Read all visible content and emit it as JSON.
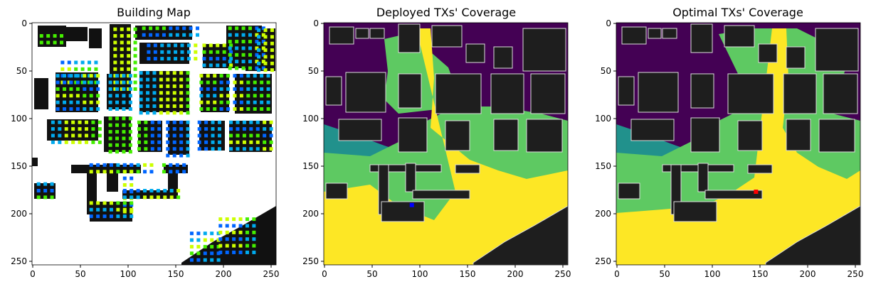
{
  "chart_data": [
    {
      "type": "heatmap",
      "title": "Building Map",
      "xlim": [
        0,
        255
      ],
      "ylim": [
        255,
        0
      ],
      "xticks": [
        "0",
        "50",
        "100",
        "150",
        "200",
        "250"
      ],
      "yticks": [
        "0",
        "50",
        "100",
        "150",
        "200",
        "250"
      ],
      "grid": false,
      "colors": {
        "background": "#ffffff",
        "building": "#111111",
        "tx_green": "#44ee00",
        "tx_yellow": "#ccff00",
        "tx_cyan": "#00aaee",
        "tx_blue": "#0066ff"
      },
      "buildings": [
        {
          "x0": 5,
          "x1": 17,
          "y0": 2,
          "y1": 28
        },
        {
          "x0": 10,
          "x1": 45,
          "y0": 0,
          "y1": 22
        },
        {
          "x0": 45,
          "x1": 58,
          "y0": 3,
          "y1": 15
        },
        {
          "x0": 58,
          "x1": 72,
          "y0": 4,
          "y1": 24
        },
        {
          "x0": 80,
          "x1": 90,
          "y0": 6,
          "y1": 20
        },
        {
          "x0": 80,
          "x1": 90,
          "y0": 6,
          "y1": 20
        },
        {
          "x0": 80,
          "x1": 90,
          "y0": 6,
          "y1": 20
        },
        {
          "x0": 80,
          "x1": 90,
          "y0": 6,
          "y1": 20
        },
        {
          "x0": 80,
          "x1": 90,
          "y0": 6,
          "y1": 20
        },
        {
          "x0": 80,
          "x1": 90,
          "y0": 6,
          "y1": 20
        },
        {
          "x0": 80,
          "x1": 90,
          "y0": 6,
          "y1": 20
        },
        {
          "x0": 80,
          "x1": 90,
          "y0": 6,
          "y1": 20
        },
        {
          "x0": 80,
          "x1": 90,
          "y0": 6,
          "y1": 20
        },
        {
          "x0": 80,
          "x1": 90,
          "y0": 6,
          "y1": 20
        }
      ]
    },
    {
      "type": "heatmap",
      "title": "Deployed TXs' Coverage",
      "xlim": [
        0,
        255
      ],
      "ylim": [
        255,
        0
      ],
      "xticks": [
        "0",
        "50",
        "100",
        "150",
        "200",
        "250"
      ],
      "yticks": [
        "0",
        "50",
        "100",
        "150",
        "200",
        "250"
      ],
      "grid": false,
      "colormap": "viridis",
      "tx_marker": {
        "x": 92,
        "y": 192,
        "color": "#0000ff"
      }
    },
    {
      "type": "heatmap",
      "title": "Optimal TXs' Coverage",
      "xlim": [
        0,
        255
      ],
      "ylim": [
        255,
        0
      ],
      "xticks": [
        "0",
        "50",
        "100",
        "150",
        "200",
        "250"
      ],
      "yticks": [
        "0",
        "50",
        "100",
        "150",
        "200",
        "250"
      ],
      "grid": false,
      "colormap": "viridis",
      "tx_marker": {
        "x": 146,
        "y": 178,
        "color": "#ff0000"
      }
    }
  ]
}
